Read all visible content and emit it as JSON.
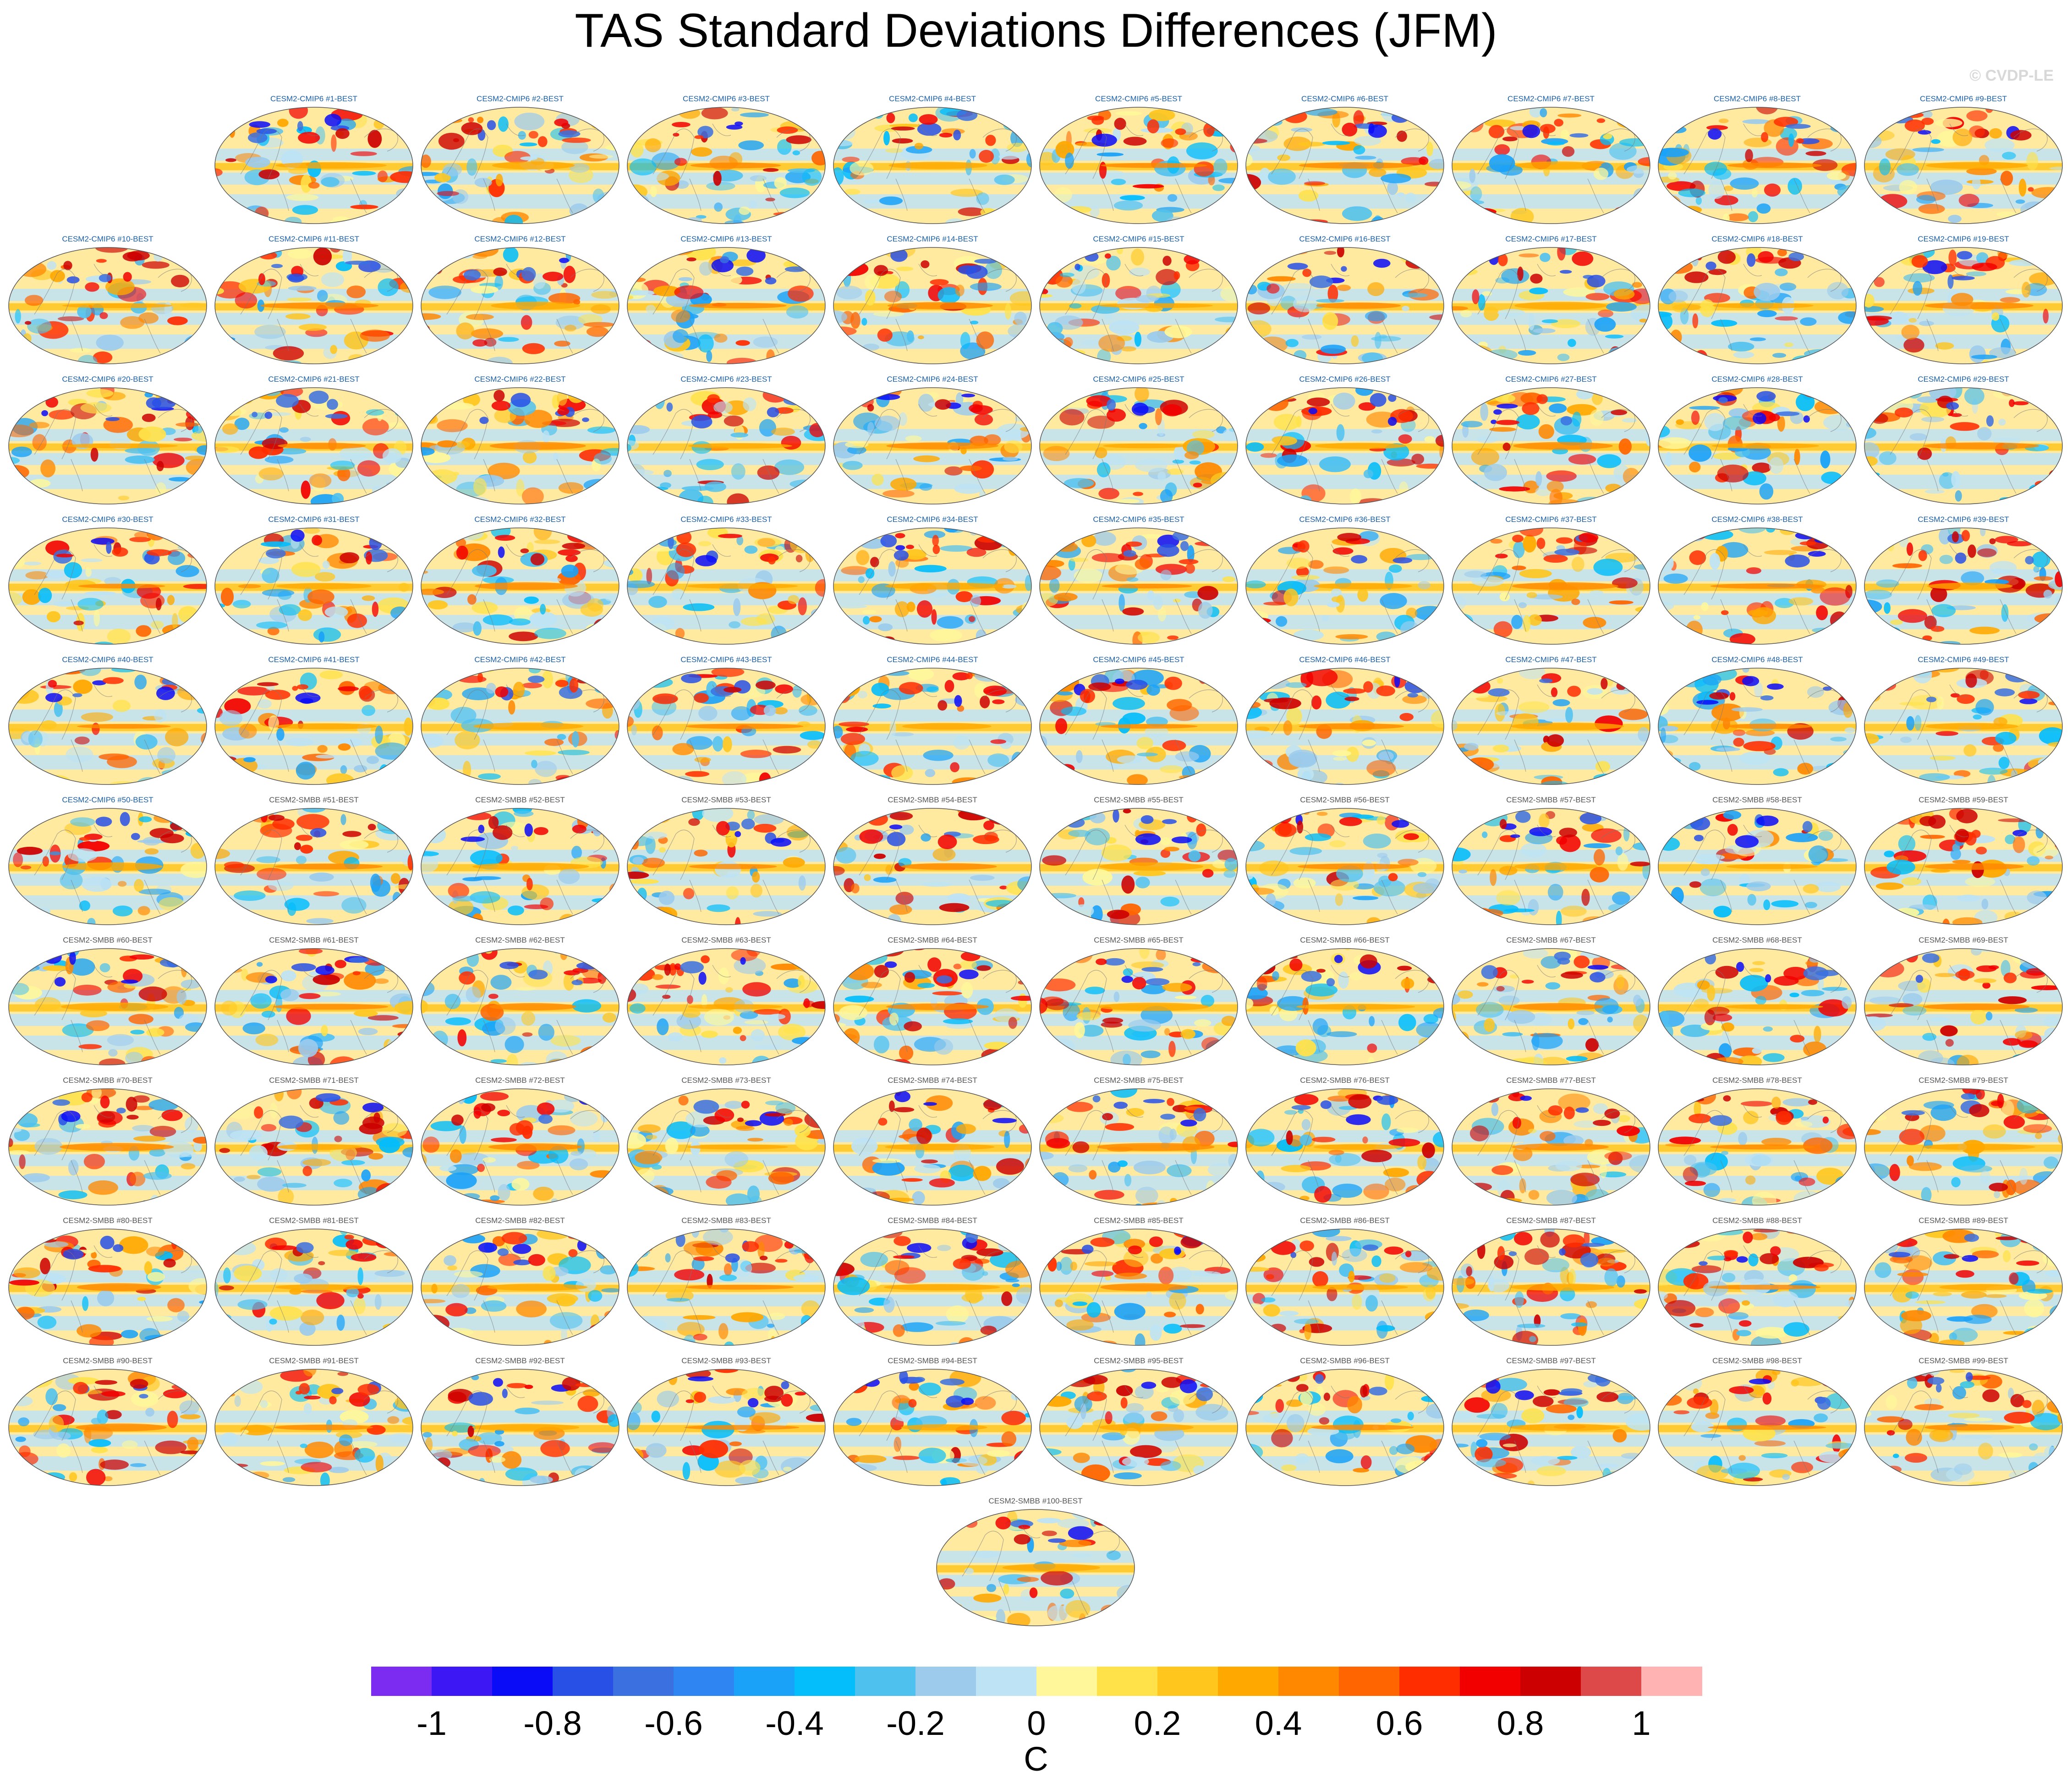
{
  "title": "TAS Standard Deviations Differences (JFM)",
  "watermark": "© CVDP-LE",
  "chart_data": {
    "type": "heatmap",
    "title": "TAS Standard Deviations Differences (JFM)",
    "projection": "robinson world maps, one per ensemble member minus BEST",
    "panels": [
      "CESM2-CMIP6 #1-BEST",
      "CESM2-CMIP6 #2-BEST",
      "CESM2-CMIP6 #3-BEST",
      "CESM2-CMIP6 #4-BEST",
      "CESM2-CMIP6 #5-BEST",
      "CESM2-CMIP6 #6-BEST",
      "CESM2-CMIP6 #7-BEST",
      "CESM2-CMIP6 #8-BEST",
      "CESM2-CMIP6 #9-BEST",
      "CESM2-CMIP6 #10-BEST",
      "CESM2-CMIP6 #11-BEST",
      "CESM2-CMIP6 #12-BEST",
      "CESM2-CMIP6 #13-BEST",
      "CESM2-CMIP6 #14-BEST",
      "CESM2-CMIP6 #15-BEST",
      "CESM2-CMIP6 #16-BEST",
      "CESM2-CMIP6 #17-BEST",
      "CESM2-CMIP6 #18-BEST",
      "CESM2-CMIP6 #19-BEST",
      "CESM2-CMIP6 #20-BEST",
      "CESM2-CMIP6 #21-BEST",
      "CESM2-CMIP6 #22-BEST",
      "CESM2-CMIP6 #23-BEST",
      "CESM2-CMIP6 #24-BEST",
      "CESM2-CMIP6 #25-BEST",
      "CESM2-CMIP6 #26-BEST",
      "CESM2-CMIP6 #27-BEST",
      "CESM2-CMIP6 #28-BEST",
      "CESM2-CMIP6 #29-BEST",
      "CESM2-CMIP6 #30-BEST",
      "CESM2-CMIP6 #31-BEST",
      "CESM2-CMIP6 #32-BEST",
      "CESM2-CMIP6 #33-BEST",
      "CESM2-CMIP6 #34-BEST",
      "CESM2-CMIP6 #35-BEST",
      "CESM2-CMIP6 #36-BEST",
      "CESM2-CMIP6 #37-BEST",
      "CESM2-CMIP6 #38-BEST",
      "CESM2-CMIP6 #39-BEST",
      "CESM2-CMIP6 #40-BEST",
      "CESM2-CMIP6 #41-BEST",
      "CESM2-CMIP6 #42-BEST",
      "CESM2-CMIP6 #43-BEST",
      "CESM2-CMIP6 #44-BEST",
      "CESM2-CMIP6 #45-BEST",
      "CESM2-CMIP6 #46-BEST",
      "CESM2-CMIP6 #47-BEST",
      "CESM2-CMIP6 #48-BEST",
      "CESM2-CMIP6 #49-BEST",
      "CESM2-CMIP6 #50-BEST",
      "CESM2-SMBB #51-BEST",
      "CESM2-SMBB #52-BEST",
      "CESM2-SMBB #53-BEST",
      "CESM2-SMBB #54-BEST",
      "CESM2-SMBB #55-BEST",
      "CESM2-SMBB #56-BEST",
      "CESM2-SMBB #57-BEST",
      "CESM2-SMBB #58-BEST",
      "CESM2-SMBB #59-BEST",
      "CESM2-SMBB #60-BEST",
      "CESM2-SMBB #61-BEST",
      "CESM2-SMBB #62-BEST",
      "CESM2-SMBB #63-BEST",
      "CESM2-SMBB #64-BEST",
      "CESM2-SMBB #65-BEST",
      "CESM2-SMBB #66-BEST",
      "CESM2-SMBB #67-BEST",
      "CESM2-SMBB #68-BEST",
      "CESM2-SMBB #69-BEST",
      "CESM2-SMBB #70-BEST",
      "CESM2-SMBB #71-BEST",
      "CESM2-SMBB #72-BEST",
      "CESM2-SMBB #73-BEST",
      "CESM2-SMBB #74-BEST",
      "CESM2-SMBB #75-BEST",
      "CESM2-SMBB #76-BEST",
      "CESM2-SMBB #77-BEST",
      "CESM2-SMBB #78-BEST",
      "CESM2-SMBB #79-BEST",
      "CESM2-SMBB #80-BEST",
      "CESM2-SMBB #81-BEST",
      "CESM2-SMBB #82-BEST",
      "CESM2-SMBB #83-BEST",
      "CESM2-SMBB #84-BEST",
      "CESM2-SMBB #85-BEST",
      "CESM2-SMBB #86-BEST",
      "CESM2-SMBB #87-BEST",
      "CESM2-SMBB #88-BEST",
      "CESM2-SMBB #89-BEST",
      "CESM2-SMBB #90-BEST",
      "CESM2-SMBB #91-BEST",
      "CESM2-SMBB #92-BEST",
      "CESM2-SMBB #93-BEST",
      "CESM2-SMBB #94-BEST",
      "CESM2-SMBB #95-BEST",
      "CESM2-SMBB #96-BEST",
      "CESM2-SMBB #97-BEST",
      "CESM2-SMBB #98-BEST",
      "CESM2-SMBB #99-BEST",
      "CESM2-SMBB #100-BEST"
    ],
    "colorbar": {
      "unit": "C",
      "range": [
        -1.1,
        1.1
      ],
      "tick_labels": [
        "-1",
        "-0.8",
        "-0.6",
        "-0.4",
        "-0.2",
        "0",
        "0.2",
        "0.4",
        "0.6",
        "0.8",
        "1"
      ],
      "tick_values": [
        -1,
        -0.8,
        -0.6,
        -0.4,
        -0.2,
        0,
        0.2,
        0.4,
        0.6,
        0.8,
        1
      ],
      "colors": [
        "#7b2cf0",
        "#3d18f5",
        "#0a0cf8",
        "#2850e6",
        "#3a70e0",
        "#2f86f2",
        "#1aa2f8",
        "#04bdfb",
        "#4fc1ef",
        "#9ccbec",
        "#bee3f4",
        "#fff79a",
        "#ffe24a",
        "#ffc61e",
        "#ffa800",
        "#ff8800",
        "#ff6500",
        "#ff2d00",
        "#f20000",
        "#cc0000",
        "#dd4848",
        "#ffb3b3"
      ]
    }
  }
}
